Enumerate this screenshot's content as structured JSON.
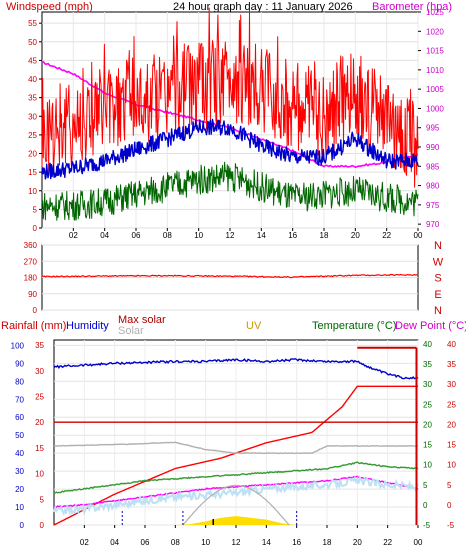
{
  "chart_data": [
    {
      "type": "line",
      "title": "24 hour graph day : 11 January 2026",
      "left_axis_label": "Windspeed (mph)",
      "right_axis_label": "Barometer (hpa)",
      "x_tick_labels": [
        "02",
        "04",
        "06",
        "08",
        "10",
        "12",
        "14",
        "16",
        "18",
        "20",
        "22",
        "00"
      ],
      "x_tick_hours": [
        2,
        4,
        6,
        8,
        10,
        12,
        14,
        16,
        18,
        20,
        22,
        24
      ],
      "x_range_hours": [
        0,
        24
      ],
      "left_ylim": [
        0,
        58
      ],
      "left_ticks": [
        0,
        5,
        10,
        15,
        20,
        25,
        30,
        35,
        40,
        45,
        50,
        55
      ],
      "right_ylim": [
        969,
        1025
      ],
      "right_ticks": [
        970,
        975,
        980,
        985,
        990,
        995,
        1000,
        1005,
        1010,
        1015,
        1020,
        1025
      ],
      "series": [
        {
          "name": "Barometer",
          "color": "#ff00ff",
          "axis": "right",
          "x": [
            0,
            2,
            4,
            6,
            8,
            10,
            12,
            14,
            16,
            18,
            20,
            22,
            24
          ],
          "y": [
            1012,
            1009,
            1004,
            1001,
            999,
            997,
            995,
            992,
            989,
            985,
            985,
            986,
            988
          ]
        },
        {
          "name": "Gust",
          "color": "#ff0000",
          "axis": "left",
          "x": [
            0,
            2,
            4,
            6,
            8,
            10,
            12,
            14,
            16,
            18,
            20,
            22,
            24
          ],
          "y": [
            25,
            28,
            32,
            34,
            36,
            38,
            40,
            37,
            33,
            30,
            36,
            28,
            22
          ]
        },
        {
          "name": "Average",
          "color": "#0000cc",
          "axis": "left",
          "x": [
            0,
            2,
            4,
            6,
            8,
            10,
            12,
            14,
            16,
            18,
            20,
            22,
            24
          ],
          "y": [
            15,
            16,
            18,
            21,
            24,
            27,
            27,
            22,
            19,
            19,
            24,
            18,
            18
          ]
        },
        {
          "name": "Wind speed",
          "color": "#006600",
          "axis": "left",
          "x": [
            0,
            2,
            4,
            6,
            8,
            10,
            12,
            14,
            16,
            18,
            20,
            22,
            24
          ],
          "y": [
            6,
            6,
            7,
            9,
            11,
            13,
            14,
            11,
            8,
            9,
            10,
            8,
            7
          ]
        }
      ]
    },
    {
      "type": "line",
      "left_ticks": [
        0,
        90,
        180,
        270,
        360
      ],
      "ylim": [
        0,
        360
      ],
      "direction_labels": [
        "N",
        "W",
        "S",
        "E",
        "N"
      ],
      "series": [
        {
          "name": "Wind direction",
          "color": "#ff0000",
          "x": [
            0,
            4,
            8,
            12,
            16,
            20,
            24
          ],
          "y": [
            185,
            188,
            190,
            187,
            182,
            192,
            195
          ]
        }
      ]
    },
    {
      "type": "line",
      "axis_titles": {
        "rainfall": "Rainfall (mm)",
        "humidity": "Humidity",
        "max_solar": "Max solar",
        "solar": "Solar",
        "uv": "UV",
        "temperature": "Temperature (°C)",
        "dew_point": "Dew Point (°C)"
      },
      "x_tick_labels": [
        "02",
        "04",
        "06",
        "08",
        "10",
        "12",
        "14",
        "16",
        "18",
        "20",
        "22",
        "00"
      ],
      "x_tick_hours": [
        2,
        4,
        6,
        8,
        10,
        12,
        14,
        16,
        18,
        20,
        22,
        24
      ],
      "humidity_ticks": [
        0,
        10,
        20,
        30,
        40,
        50,
        60,
        70,
        80,
        90,
        100
      ],
      "rain_ticks": [
        0,
        5,
        10,
        15,
        20,
        25,
        30,
        35
      ],
      "temp_ticks": [
        -5,
        0,
        5,
        10,
        15,
        20,
        25,
        30,
        35,
        40
      ],
      "humidity_ylim": [
        0,
        103
      ],
      "rain_ylim": [
        0,
        36
      ],
      "temp_ylim": [
        -5,
        41
      ],
      "series": [
        {
          "name": "Humidity",
          "color": "#0000cc",
          "axis": "humidity",
          "x": [
            0,
            2,
            4,
            8,
            10,
            12,
            14,
            16,
            18,
            20,
            21,
            22,
            23,
            24
          ],
          "y": [
            88,
            89,
            90,
            91,
            91,
            92,
            91,
            92,
            91,
            91,
            87,
            84,
            82,
            82
          ]
        },
        {
          "name": "Rainfall",
          "color": "#ff0000",
          "axis": "rain",
          "x": [
            0,
            4,
            8,
            11,
            14,
            17,
            19,
            20,
            21,
            24
          ],
          "y": [
            0,
            6,
            11,
            13,
            16,
            18,
            23,
            27,
            27,
            27
          ]
        },
        {
          "name": "Rain rate",
          "color": "#cc0000",
          "axis": "rain",
          "x": [
            0,
            24
          ],
          "y": [
            20,
            20
          ]
        },
        {
          "name": "Max solar",
          "color": "#b0b0b0",
          "axis": "humidity",
          "x": [
            0,
            5,
            8,
            10,
            12,
            14,
            17,
            18,
            20,
            24
          ],
          "y": [
            44,
            45,
            46,
            42,
            40,
            40,
            40,
            44,
            44,
            44
          ]
        },
        {
          "name": "Temperature",
          "color": "#339933",
          "axis": "temp",
          "x": [
            0,
            2,
            4,
            6,
            8,
            10,
            12,
            14,
            16,
            18,
            20,
            22,
            24
          ],
          "y": [
            3,
            4,
            5,
            6,
            6.5,
            7,
            7.5,
            8,
            8.5,
            9,
            10.5,
            9.5,
            9
          ]
        },
        {
          "name": "Dew Point",
          "color": "#ff00ff",
          "axis": "temp",
          "x": [
            0,
            2,
            4,
            6,
            8,
            10,
            12,
            14,
            16,
            18,
            20,
            22,
            24
          ],
          "y": [
            -0.5,
            0,
            1,
            2,
            3,
            4,
            4.5,
            5,
            5.5,
            6,
            7,
            5.5,
            4
          ]
        },
        {
          "name": "Solar",
          "color": "#bde0f5",
          "axis": "temp",
          "x": [
            0,
            2,
            4,
            6,
            8,
            10,
            12,
            14,
            16,
            18,
            20,
            22,
            24
          ],
          "y": [
            -1.5,
            -1,
            0,
            1,
            2,
            2.5,
            3,
            4,
            4.5,
            5,
            6,
            5,
            4.5
          ]
        },
        {
          "name": "UV",
          "color": "#ffdd00",
          "axis": "humidity",
          "x": [
            0,
            8,
            9,
            10,
            11,
            12,
            13,
            14,
            15,
            16,
            24
          ],
          "y": [
            0,
            0,
            0.5,
            2,
            4,
            5,
            4,
            3,
            1,
            0,
            0
          ]
        }
      ]
    }
  ]
}
